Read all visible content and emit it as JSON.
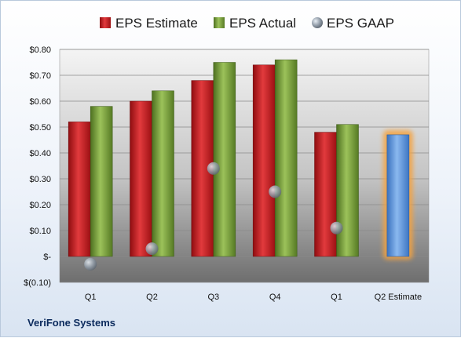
{
  "chart_data": {
    "type": "bar",
    "title": "",
    "company": "VeriFone Systems",
    "categories": [
      "Q1",
      "Q2",
      "Q3",
      "Q4",
      "Q1",
      "Q2 Estimate"
    ],
    "series": [
      {
        "name": "EPS Estimate",
        "type": "bar",
        "color": "#c4161c",
        "values": [
          0.52,
          0.6,
          0.68,
          0.74,
          0.48,
          0.47
        ]
      },
      {
        "name": "EPS Actual",
        "type": "bar",
        "color": "#7aa23a",
        "values": [
          0.58,
          0.64,
          0.75,
          0.76,
          0.51,
          null
        ]
      },
      {
        "name": "EPS GAAP",
        "type": "scatter",
        "color": "#9aa8b8",
        "values": [
          -0.03,
          0.03,
          0.34,
          0.25,
          0.11,
          null
        ]
      }
    ],
    "estimate_bar_color": "#4f8fdd",
    "estimate_highlight_color": "#f4a340",
    "y_ticks": [
      "$(0.10)",
      "$-",
      "$0.10",
      "$0.20",
      "$0.30",
      "$0.40",
      "$0.50",
      "$0.60",
      "$0.70",
      "$0.80"
    ],
    "ylim": [
      -0.1,
      0.8
    ],
    "legend_position": "top",
    "grid": true
  }
}
